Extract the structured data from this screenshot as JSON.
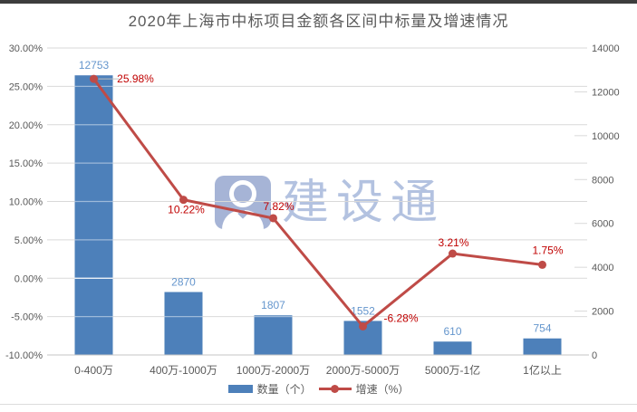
{
  "watermark": {
    "text": "建设通",
    "icon": "person-badge-icon",
    "icon_color": "#a6b4d6",
    "text_color": "#b3c2e0"
  },
  "colors": {
    "top_border": "#3d3d3d",
    "title_text": "#595959",
    "axis_text": "#595959",
    "gridline": "#d9d9d9",
    "axis_line": "#c6c6c6",
    "bar": "#4d80ba",
    "bar_value_label": "#6596cd",
    "line": "#bf4b47",
    "line_value_label": "#c00000",
    "leader_line": "#bfbfbf"
  },
  "chart_data": {
    "type": "combo",
    "title": "2020年上海市中标项目金额各区间中标量及增速情况",
    "categories": [
      "0-400万",
      "400万-1000万",
      "1000万-2000万",
      "2000万-5000万",
      "5000万-1亿",
      "1亿以上"
    ],
    "series": [
      {
        "name": "数量（个）",
        "type": "bar",
        "axis": "right",
        "values": [
          12753,
          2870,
          1807,
          1552,
          610,
          754
        ],
        "data_labels": [
          "12753",
          "2870",
          "1807",
          "1552",
          "610",
          "754"
        ]
      },
      {
        "name": "增速（%）",
        "type": "line",
        "axis": "left",
        "values": [
          25.98,
          10.22,
          7.82,
          -6.28,
          3.21,
          1.75
        ],
        "data_labels": [
          "25.98%",
          "10.22%",
          "7.82%",
          "-6.28%",
          "3.21%",
          "1.75%"
        ]
      }
    ],
    "left_axis": {
      "min": -10,
      "max": 30,
      "tick_labels": [
        "30.00%",
        "25.00%",
        "20.00%",
        "15.00%",
        "10.00%",
        "5.00%",
        "0.00%",
        "-5.00%",
        "-10.00%"
      ]
    },
    "right_axis": {
      "min": 0,
      "max": 14000,
      "tick_labels": [
        "14000",
        "12000",
        "10000",
        "8000",
        "6000",
        "4000",
        "2000",
        "0"
      ]
    },
    "legend_position": "bottom",
    "grid": true
  }
}
